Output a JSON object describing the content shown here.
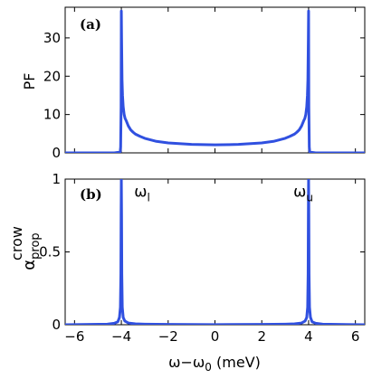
{
  "chart_data": [
    {
      "type": "line",
      "panel_label": "(a)",
      "ylabel": "PF",
      "xlabel": "",
      "xlim": [
        -6.4,
        6.4
      ],
      "ylim": [
        0,
        38
      ],
      "xticks": [
        -6,
        -4,
        -2,
        0,
        2,
        4,
        6
      ],
      "yticks": [
        0,
        10,
        20,
        30
      ],
      "ytick_labels": [
        "0",
        "10",
        "20",
        "30"
      ],
      "show_xtick_labels": false,
      "grid": false,
      "series": [
        {
          "color": "#3050e0",
          "x": [
            -6.4,
            -4.3,
            -4.05,
            -4.03,
            -4.01,
            -4.0,
            -3.99,
            -3.97,
            -3.95,
            -3.92,
            -3.88,
            -3.84,
            -3.8,
            -3.7,
            -3.6,
            -3.5,
            -3.4,
            -3.2,
            -3.0,
            -2.5,
            -2.0,
            -1.0,
            0.0,
            1.0,
            2.0,
            2.5,
            3.0,
            3.2,
            3.4,
            3.5,
            3.6,
            3.7,
            3.8,
            3.84,
            3.88,
            3.92,
            3.95,
            3.97,
            3.99,
            4.0,
            4.01,
            4.03,
            4.05,
            4.3,
            6.4
          ],
          "y": [
            0.0,
            0.0,
            0.2,
            1.5,
            12,
            37,
            30,
            19,
            15,
            12,
            10,
            9,
            8.5,
            7.0,
            6.0,
            5.4,
            4.9,
            4.3,
            3.8,
            3.0,
            2.6,
            2.2,
            2.1,
            2.2,
            2.6,
            3.0,
            3.8,
            4.3,
            4.9,
            5.4,
            6.0,
            7.0,
            8.5,
            9,
            10,
            12,
            15,
            19,
            30,
            37,
            12,
            1.5,
            0.2,
            0.0,
            0.0
          ]
        }
      ]
    },
    {
      "type": "line",
      "panel_label": "(b)",
      "ylabel": "α",
      "ylabel_sup": "crow",
      "ylabel_sub": "prop",
      "xlabel": "ω−ω",
      "xlabel_sub": "0",
      "xlabel_unit": " (meV)",
      "xlim": [
        -6.4,
        6.4
      ],
      "ylim": [
        0,
        1
      ],
      "xticks": [
        -6,
        -4,
        -2,
        0,
        2,
        4,
        6
      ],
      "xtick_labels": [
        "−6",
        "−4",
        "−2",
        "0",
        "2",
        "4",
        "6"
      ],
      "yticks": [
        0,
        0.5,
        1
      ],
      "ytick_labels": [
        "0",
        "0.5",
        "1"
      ],
      "grid": false,
      "annotations": [
        {
          "text": "ω",
          "sub": "l",
          "x": -3.45,
          "y": 0.88
        },
        {
          "text": "ω",
          "sub": "u",
          "x": 3.35,
          "y": 0.88
        }
      ],
      "series": [
        {
          "color": "#3050e0",
          "x": [
            -6.4,
            -4.6,
            -4.3,
            -4.15,
            -4.08,
            -4.04,
            -4.02,
            -4.01,
            -4.0,
            -3.99,
            -3.98,
            -3.96,
            -3.92,
            -3.85,
            -3.7,
            -3.4,
            -3.0,
            -2.0,
            0.0,
            2.0,
            3.0,
            3.4,
            3.7,
            3.85,
            3.92,
            3.96,
            3.98,
            3.99,
            4.0,
            4.01,
            4.02,
            4.04,
            4.08,
            4.15,
            4.3,
            4.6,
            6.4
          ],
          "y": [
            0.0,
            0.004,
            0.01,
            0.02,
            0.05,
            0.12,
            0.35,
            0.75,
            1.0,
            0.75,
            0.35,
            0.12,
            0.05,
            0.025,
            0.012,
            0.006,
            0.004,
            0.002,
            0.001,
            0.002,
            0.004,
            0.006,
            0.012,
            0.025,
            0.05,
            0.12,
            0.35,
            0.75,
            1.0,
            0.75,
            0.35,
            0.12,
            0.05,
            0.02,
            0.01,
            0.004,
            0.0
          ]
        }
      ]
    }
  ]
}
